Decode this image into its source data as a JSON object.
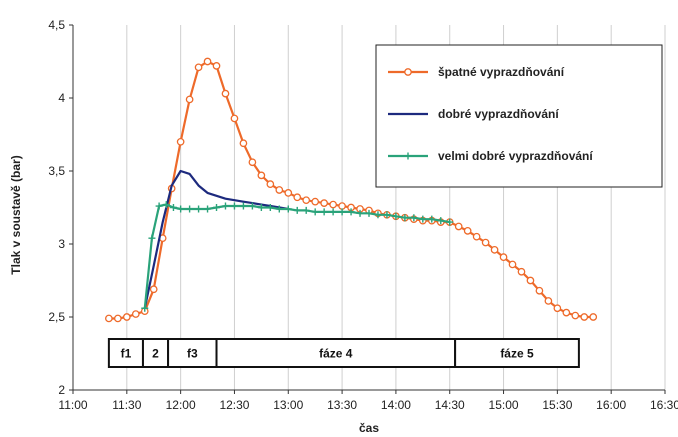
{
  "chart_data": {
    "type": "line",
    "xlabel": "čas",
    "ylabel": "Tlak v soustavě (bar)",
    "ylim": [
      2,
      4.5
    ],
    "xlim": [
      "11:00",
      "16:30"
    ],
    "x_tick_labels": [
      "11:00",
      "11:30",
      "12:00",
      "12:30",
      "13:00",
      "13:30",
      "14:00",
      "14:30",
      "15:00",
      "15:30",
      "16:00",
      "16:30"
    ],
    "y_tick_labels": [
      "2",
      "2,5",
      "3",
      "3,5",
      "4",
      "4,5"
    ],
    "y_ticks": [
      2,
      2.5,
      3,
      3.5,
      4,
      4.5
    ],
    "grid": "vertical",
    "legend_position": "top-right",
    "phases": [
      {
        "label": "f1",
        "start": "11:20",
        "end": "11:39"
      },
      {
        "label": "2",
        "start": "11:39",
        "end": "11:53"
      },
      {
        "label": "f3",
        "start": "11:53",
        "end": "12:20"
      },
      {
        "label": "fáze 4",
        "start": "12:20",
        "end": "14:33"
      },
      {
        "label": "fáze 5",
        "start": "14:33",
        "end": "15:42"
      }
    ],
    "series": [
      {
        "name": "špatné vyprazdňování",
        "color": "#ee6a2a",
        "marker": "circle",
        "x": [
          "11:20",
          "11:25",
          "11:30",
          "11:35",
          "11:40",
          "11:45",
          "11:50",
          "11:55",
          "12:00",
          "12:05",
          "12:10",
          "12:15",
          "12:20",
          "12:25",
          "12:30",
          "12:35",
          "12:40",
          "12:45",
          "12:50",
          "12:55",
          "13:00",
          "13:05",
          "13:10",
          "13:15",
          "13:20",
          "13:25",
          "13:30",
          "13:35",
          "13:40",
          "13:45",
          "13:50",
          "13:55",
          "14:00",
          "14:05",
          "14:10",
          "14:15",
          "14:20",
          "14:25",
          "14:30",
          "14:35",
          "14:40",
          "14:45",
          "14:50",
          "14:55",
          "15:00",
          "15:05",
          "15:10",
          "15:15",
          "15:20",
          "15:25",
          "15:30",
          "15:35",
          "15:40",
          "15:45",
          "15:50"
        ],
        "y": [
          2.49,
          2.49,
          2.5,
          2.52,
          2.54,
          2.69,
          3.04,
          3.38,
          3.7,
          3.99,
          4.21,
          4.25,
          4.22,
          4.03,
          3.86,
          3.69,
          3.56,
          3.47,
          3.41,
          3.37,
          3.35,
          3.32,
          3.3,
          3.29,
          3.28,
          3.27,
          3.26,
          3.25,
          3.24,
          3.23,
          3.21,
          3.2,
          3.19,
          3.18,
          3.17,
          3.16,
          3.16,
          3.15,
          3.15,
          3.12,
          3.09,
          3.05,
          3.01,
          2.96,
          2.91,
          2.86,
          2.81,
          2.75,
          2.68,
          2.61,
          2.56,
          2.53,
          2.51,
          2.5,
          2.5
        ]
      },
      {
        "name": "dobré vyprazdňování",
        "color": "#1d2a7e",
        "marker": "none",
        "x": [
          "11:40",
          "11:45",
          "11:50",
          "11:55",
          "12:00",
          "12:05",
          "12:10",
          "12:15",
          "12:20",
          "12:25",
          "12:30",
          "12:35",
          "12:40",
          "12:45",
          "12:50",
          "12:55",
          "13:00"
        ],
        "y": [
          2.56,
          2.85,
          3.15,
          3.4,
          3.5,
          3.48,
          3.4,
          3.35,
          3.33,
          3.31,
          3.3,
          3.29,
          3.28,
          3.27,
          3.26,
          3.25,
          3.24
        ]
      },
      {
        "name": "velmi dobré vyprazdňování",
        "color": "#2aa37a",
        "marker": "plus",
        "x": [
          "11:40",
          "11:44",
          "11:48",
          "11:52",
          "11:56",
          "12:00",
          "12:05",
          "12:10",
          "12:15",
          "12:20",
          "12:25",
          "12:30",
          "12:35",
          "12:40",
          "12:45",
          "12:50",
          "12:55",
          "13:00",
          "13:05",
          "13:10",
          "13:15",
          "13:20",
          "13:25",
          "13:30",
          "13:35",
          "13:40",
          "13:45",
          "13:50",
          "13:55",
          "14:00",
          "14:05",
          "14:10",
          "14:15",
          "14:20",
          "14:25",
          "14:30"
        ],
        "y": [
          2.56,
          3.04,
          3.26,
          3.27,
          3.25,
          3.24,
          3.24,
          3.24,
          3.24,
          3.25,
          3.26,
          3.26,
          3.26,
          3.26,
          3.25,
          3.25,
          3.24,
          3.24,
          3.23,
          3.23,
          3.22,
          3.22,
          3.22,
          3.22,
          3.22,
          3.21,
          3.21,
          3.2,
          3.2,
          3.19,
          3.18,
          3.18,
          3.17,
          3.17,
          3.16,
          3.15
        ]
      }
    ]
  }
}
